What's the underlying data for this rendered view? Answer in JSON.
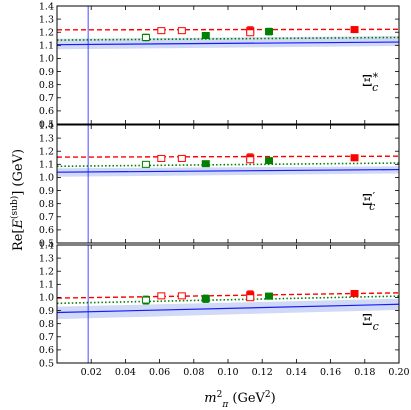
{
  "chart_data": {
    "type": "scatter",
    "xlabel": "m_π² (GeV²)",
    "ylabel": "Re[E^(sub)] (GeV)",
    "xlim": [
      0.0,
      0.2
    ],
    "ylim": [
      0.5,
      1.4
    ],
    "xticks": [
      "0.02",
      "0.04",
      "0.06",
      "0.08",
      "0.10",
      "0.12",
      "0.14",
      "0.16",
      "0.18",
      "0.20"
    ],
    "yticks": [
      "0.5",
      "0.6",
      "0.7",
      "0.8",
      "0.9",
      "1.0",
      "1.1",
      "1.2",
      "1.3",
      "1.4"
    ],
    "physical_point_line_x": 0.0182,
    "colors": {
      "red": "#ff0000",
      "green": "#008000",
      "blue": "#1a1aff",
      "band": "#c8d2f5"
    },
    "panels": [
      {
        "label": "Ξ_c*",
        "red_points": [
          [
            0.061,
            1.212,
            0.02,
            false
          ],
          [
            0.073,
            1.212,
            0.02,
            false
          ],
          [
            0.113,
            1.212,
            0.03,
            true
          ],
          [
            0.113,
            1.196,
            0.018,
            false
          ],
          [
            0.174,
            1.22,
            0.022,
            true
          ]
        ],
        "green_points": [
          [
            0.052,
            1.16,
            0.025,
            false
          ],
          [
            0.087,
            1.175,
            0.022,
            true
          ],
          [
            0.124,
            1.205,
            0.025,
            true
          ]
        ],
        "red_dashed": [
          [
            0.0,
            1.218
          ],
          [
            0.2,
            1.222
          ]
        ],
        "green_dotted": [
          [
            0.0,
            1.14
          ],
          [
            0.2,
            1.16
          ]
        ],
        "blue_curve": [
          [
            0.0,
            1.105
          ],
          [
            0.2,
            1.125
          ]
        ],
        "blue_band": [
          [
            0.0,
            1.07,
            1.15
          ],
          [
            0.2,
            1.095,
            1.17
          ]
        ]
      },
      {
        "label": "Ξ_c′",
        "red_points": [
          [
            0.061,
            1.145,
            0.02,
            false
          ],
          [
            0.073,
            1.145,
            0.02,
            false
          ],
          [
            0.113,
            1.15,
            0.03,
            true
          ],
          [
            0.113,
            1.135,
            0.018,
            false
          ],
          [
            0.174,
            1.15,
            0.022,
            true
          ]
        ],
        "green_points": [
          [
            0.052,
            1.1,
            0.02,
            false
          ],
          [
            0.087,
            1.105,
            0.02,
            true
          ],
          [
            0.124,
            1.128,
            0.022,
            true
          ]
        ],
        "red_dashed": [
          [
            0.0,
            1.155
          ],
          [
            0.2,
            1.162
          ]
        ],
        "green_dotted": [
          [
            0.0,
            1.085
          ],
          [
            0.2,
            1.11
          ]
        ],
        "blue_curve": [
          [
            0.0,
            1.04
          ],
          [
            0.2,
            1.06
          ]
        ],
        "blue_band": [
          [
            0.0,
            1.005,
            1.07
          ],
          [
            0.2,
            1.03,
            1.085
          ]
        ]
      },
      {
        "label": "Ξ_c",
        "red_points": [
          [
            0.061,
            1.012,
            0.02,
            false
          ],
          [
            0.073,
            1.012,
            0.018,
            false
          ],
          [
            0.113,
            1.02,
            0.03,
            true
          ],
          [
            0.113,
            0.998,
            0.018,
            false
          ],
          [
            0.174,
            1.03,
            0.02,
            true
          ]
        ],
        "green_points": [
          [
            0.052,
            0.98,
            0.03,
            false
          ],
          [
            0.087,
            0.99,
            0.028,
            true
          ],
          [
            0.124,
            1.01,
            0.022,
            true
          ]
        ],
        "red_dashed": [
          [
            0.0,
            0.995
          ],
          [
            0.2,
            1.035
          ]
        ],
        "green_dotted": [
          [
            0.0,
            0.955
          ],
          [
            0.2,
            1.01
          ]
        ],
        "blue_curve": [
          [
            0.0,
            0.885
          ],
          [
            0.2,
            0.948
          ]
        ],
        "blue_band": [
          [
            0.0,
            0.835,
            0.93
          ],
          [
            0.2,
            0.905,
            0.99
          ]
        ]
      }
    ]
  }
}
